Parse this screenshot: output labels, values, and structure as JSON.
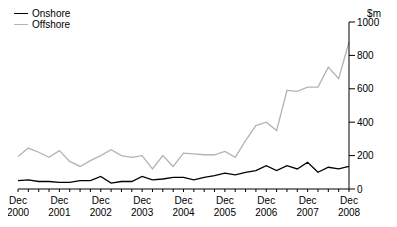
{
  "chart_data": {
    "type": "line",
    "y_label": "$m",
    "categories": [
      "Dec 2000",
      null,
      null,
      null,
      "Dec 2001",
      null,
      null,
      null,
      "Dec 2002",
      null,
      null,
      null,
      "Dec 2003",
      null,
      null,
      null,
      "Dec 2004",
      null,
      null,
      null,
      "Dec 2005",
      null,
      null,
      null,
      "Dec 2006",
      null,
      null,
      null,
      "Dec 2007",
      null,
      null,
      null,
      "Dec 2008"
    ],
    "series": [
      {
        "name": "Onshore",
        "color": "#000000",
        "values": [
          50,
          55,
          45,
          45,
          40,
          40,
          50,
          50,
          75,
          35,
          45,
          45,
          75,
          55,
          60,
          70,
          70,
          55,
          70,
          80,
          95,
          85,
          100,
          110,
          140,
          110,
          140,
          120,
          160,
          100,
          130,
          120,
          135
        ]
      },
      {
        "name": "Offshore",
        "color": "#b3b3b3",
        "values": [
          195,
          245,
          220,
          190,
          230,
          165,
          135,
          170,
          200,
          235,
          200,
          190,
          200,
          120,
          200,
          135,
          215,
          210,
          205,
          205,
          225,
          190,
          290,
          380,
          400,
          350,
          590,
          585,
          610,
          610,
          730,
          660,
          880
        ]
      }
    ],
    "ylim": [
      0,
      1000
    ],
    "yticks": [
      0,
      200,
      400,
      600,
      800,
      1000
    ],
    "grid": false,
    "legend": "top-left"
  }
}
